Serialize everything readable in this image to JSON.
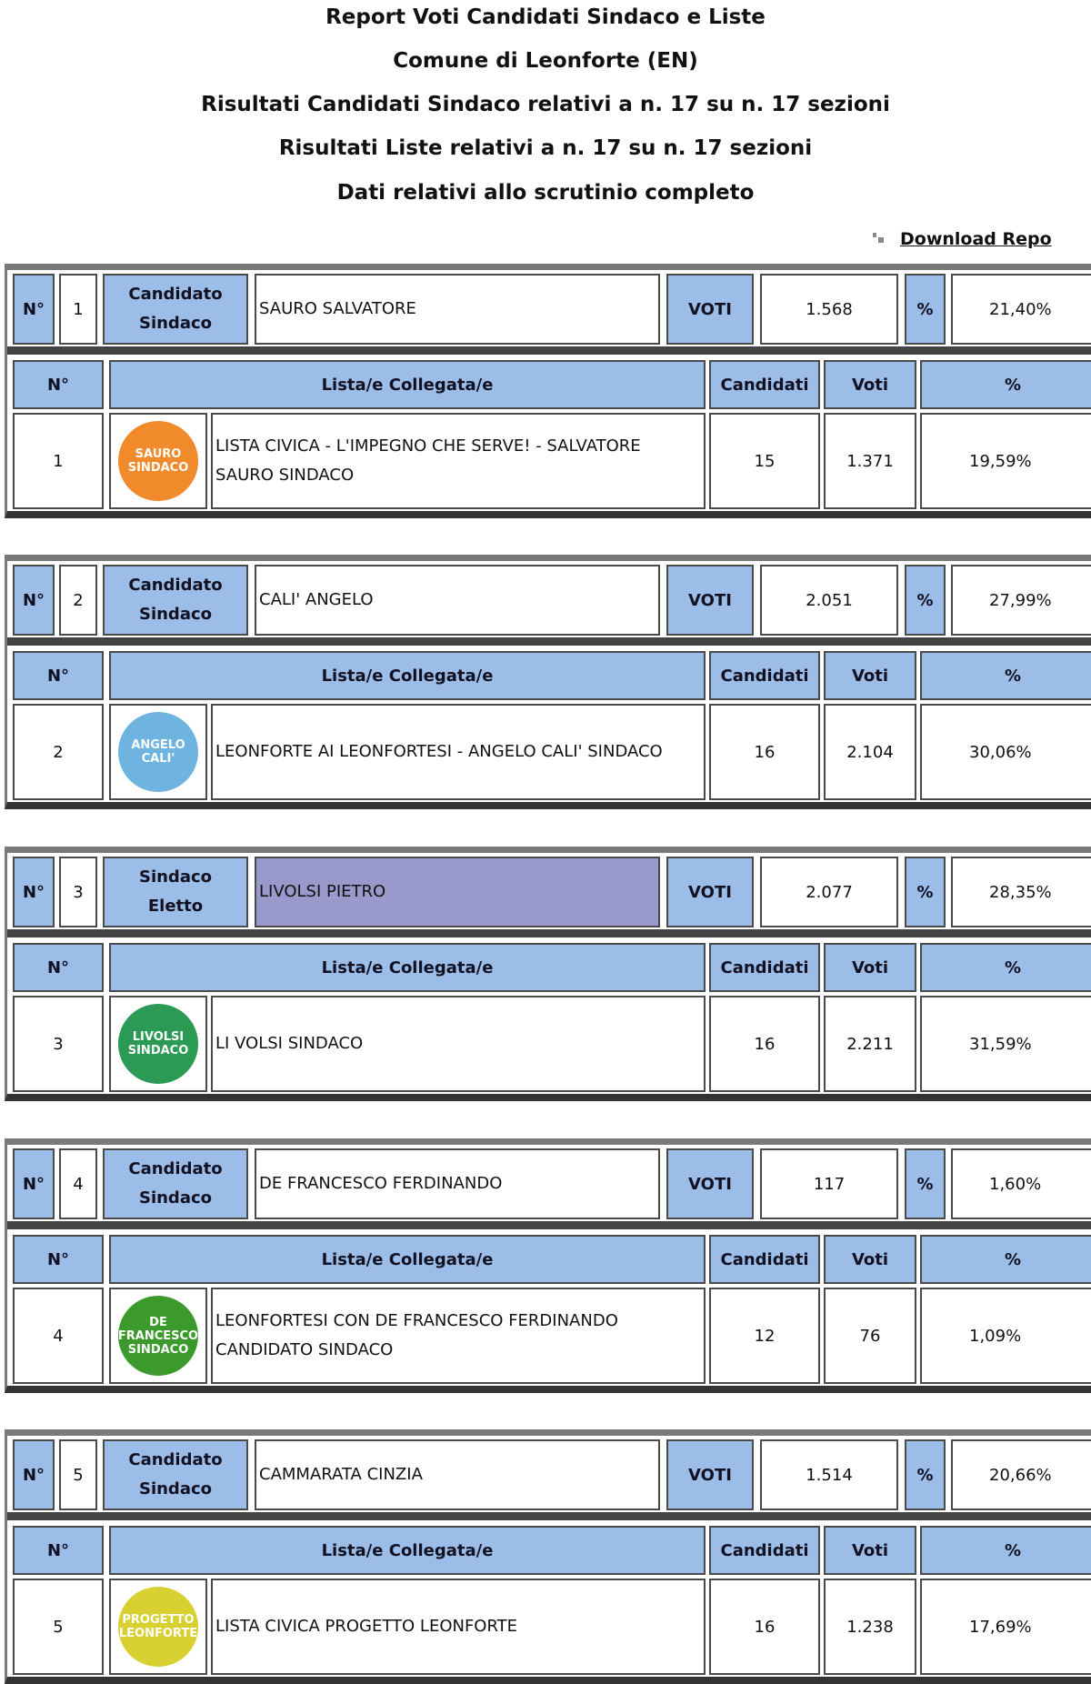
{
  "header": {
    "title": "Report Voti Candidati Sindaco e Liste",
    "comune": "Comune di Leonforte (EN)",
    "sindaco_sezioni": "Risultati Candidati Sindaco relativi a n. 17 su n. 17 sezioni",
    "liste_sezioni": "Risultati Liste relativi a n. 17 su n. 17 sezioni",
    "stato": "Dati relativi allo scrutinio completo",
    "download_label": "Download Repo"
  },
  "labels": {
    "no": "N°",
    "voti_caps": "VOTI",
    "pct": "%",
    "liste": "Lista/e Collegata/e",
    "candidati": "Candidati",
    "voti": "Voti"
  },
  "colors": {
    "header_blue": "#9bbde8",
    "elected": "#9999cc"
  },
  "candidates": [
    {
      "n": "1",
      "role": "Candidato Sindaco",
      "name": "SAURO SALVATORE",
      "voti": "1.568",
      "pct": "21,40%",
      "elected": false,
      "list": {
        "n": "1",
        "name": "LISTA CIVICA - L'IMPEGNO CHE SERVE! - SALVATORE SAURO SINDACO",
        "candidati": "15",
        "voti": "1.371",
        "pct": "19,59%",
        "logo_text": "SAURO SINDACO",
        "logo_color": "#f08a2a"
      }
    },
    {
      "n": "2",
      "role": "Candidato Sindaco",
      "name": "CALI' ANGELO",
      "voti": "2.051",
      "pct": "27,99%",
      "elected": false,
      "list": {
        "n": "2",
        "name": "LEONFORTE AI LEONFORTESI - ANGELO CALI' SINDACO",
        "candidati": "16",
        "voti": "2.104",
        "pct": "30,06%",
        "logo_text": "ANGELO CALI'",
        "logo_color": "#6fb3e0"
      }
    },
    {
      "n": "3",
      "role": "Sindaco Eletto",
      "name": "LIVOLSI PIETRO",
      "voti": "2.077",
      "pct": "28,35%",
      "elected": true,
      "list": {
        "n": "3",
        "name": "LI VOLSI SINDACO",
        "candidati": "16",
        "voti": "2.211",
        "pct": "31,59%",
        "logo_text": "LIVOLSI SINDACO",
        "logo_color": "#2a9a55"
      }
    },
    {
      "n": "4",
      "role": "Candidato Sindaco",
      "name": "DE FRANCESCO FERDINANDO",
      "voti": "117",
      "pct": "1,60%",
      "elected": false,
      "list": {
        "n": "4",
        "name": "LEONFORTESI CON DE FRANCESCO FERDINANDO CANDIDATO SINDACO",
        "candidati": "12",
        "voti": "76",
        "pct": "1,09%",
        "logo_text": "DE FRANCESCO SINDACO",
        "logo_color": "#3c9a2c"
      }
    },
    {
      "n": "5",
      "role": "Candidato Sindaco",
      "name": "CAMMARATA CINZIA",
      "voti": "1.514",
      "pct": "20,66%",
      "elected": false,
      "list": {
        "n": "5",
        "name": "LISTA CIVICA PROGETTO LEONFORTE",
        "candidati": "16",
        "voti": "1.238",
        "pct": "17,69%",
        "logo_text": "PROGETTO LEONFORTE",
        "logo_color": "#d8d030"
      }
    }
  ]
}
